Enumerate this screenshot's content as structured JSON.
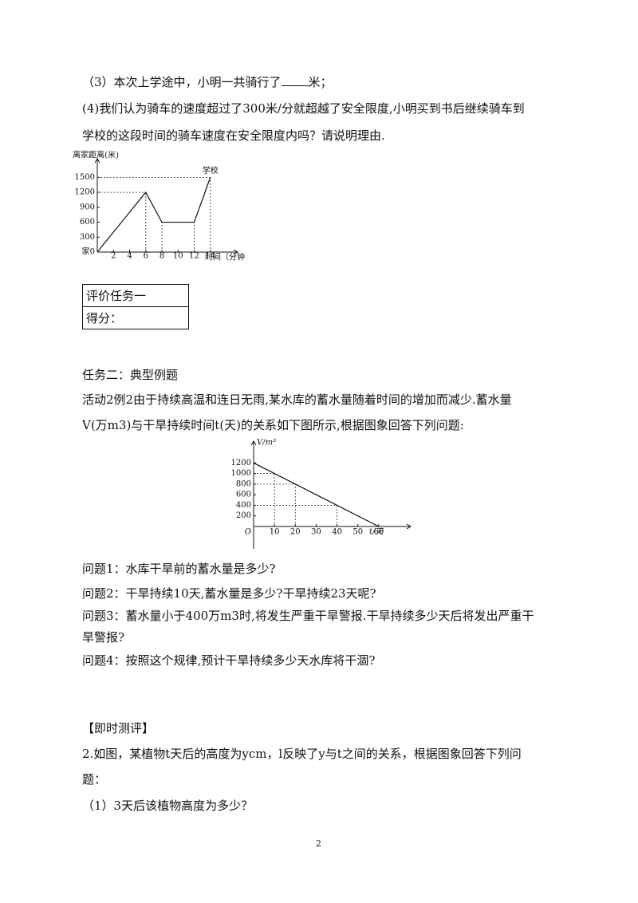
{
  "q3": [
    "（3）本次上学途中，小明一共骑行了",
    "米；"
  ],
  "q4": [
    "(4)我们认为骑车的速度超过了300米/分就超越了安全限度,小明买到书后继续骑车到",
    "学校的这段时间的骑车速度在安全限度内吗？请说明理由."
  ],
  "figures": [
    {
      "type": "line",
      "ylabel": "离家距离(米)",
      "xlabel": "时间（分钟",
      "origin_label": "家0",
      "annotation": "学校",
      "x": [
        0,
        6,
        8,
        12,
        14
      ],
      "y": [
        0,
        1200,
        600,
        600,
        1500
      ],
      "xlim": [
        0,
        16
      ],
      "ylim": [
        0,
        1650
      ],
      "xticks": [
        2,
        4,
        6,
        8,
        10,
        12,
        14
      ],
      "yticks": [
        300,
        600,
        900,
        1200,
        1500
      ]
    },
    {
      "type": "line",
      "ylabel": "V/m³",
      "xlabel": "t/天",
      "origin_label": "O",
      "x": [
        0,
        60
      ],
      "y": [
        1200,
        0
      ],
      "guide_x": [
        10,
        20,
        40
      ],
      "xlim": [
        0,
        70
      ],
      "ylim": [
        0,
        1400
      ],
      "xticks": [
        10,
        20,
        30,
        40,
        50,
        60
      ],
      "yticks": [
        200,
        400,
        600,
        800,
        1000,
        1200
      ]
    }
  ],
  "table": {
    "rows": [
      "评价任务一",
      "得分："
    ]
  },
  "task2": {
    "title": "任务二：典型例题",
    "intro": [
      "活动2例2由于持续高温和连日无雨,某水库的蓄水量随着时间的增加而减少.蓄水量",
      "V(万m3)与干旱持续时间t(天)的关系如下图所示,根据图象回答下列问题:"
    ],
    "questions": [
      [
        "问题1：水库干旱前的蓄水量是多少?"
      ],
      [
        "问题2：干旱持续10天,蓄水量是多少?干旱持续23天呢?"
      ],
      [
        "问题3：蓄水量小于400万m3时,将发生严重干旱警报.干旱持续多少天后将发出严重干",
        "旱警报?"
      ],
      [
        "问题4：按照这个规律,预计干旱持续多少天水库将干涸?"
      ]
    ]
  },
  "assess": {
    "title": "【即时测评】",
    "problem": [
      "2.如图，某植物t天后的高度为ycm，l反映了y与t之间的关系，根据图象回答下列问",
      "题："
    ],
    "sub1": "（1）3天后该植物高度为多少？"
  },
  "page_number": "2"
}
